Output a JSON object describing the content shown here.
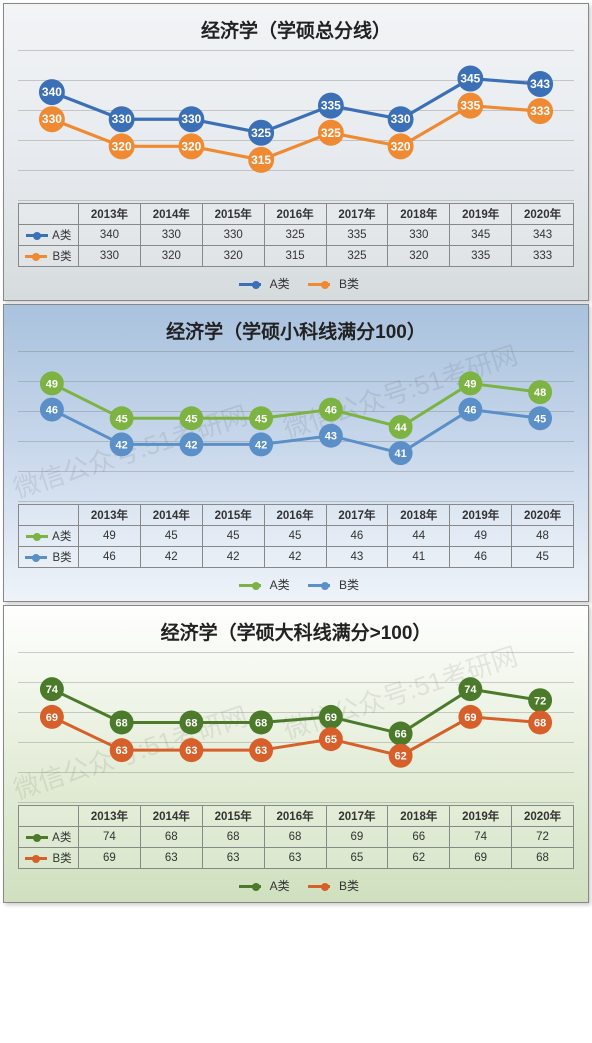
{
  "watermark_text": "微信公众号:51考研网",
  "categories": [
    "2013年",
    "2014年",
    "2015年",
    "2016年",
    "2017年",
    "2018年",
    "2019年",
    "2020年"
  ],
  "series_labels": {
    "a": "A类",
    "b": "B类"
  },
  "charts": [
    {
      "title": "经济学（学硕总分线）",
      "background": "linear-gradient(180deg,#f2f4f6 0%,#e6eaee 55%,#d6dcde 100%)",
      "grid_n": 6,
      "ylim": [
        305,
        350
      ],
      "series_a": {
        "color": "#3b6fb6",
        "values": [
          340,
          330,
          330,
          325,
          335,
          330,
          345,
          343
        ],
        "marker_r": 13,
        "line_w": 3.2,
        "label_color": "#ffffff",
        "label_fs": 12
      },
      "series_b": {
        "color": "#ef8a32",
        "values": [
          330,
          320,
          320,
          315,
          325,
          320,
          335,
          333
        ],
        "marker_r": 13,
        "line_w": 3.2,
        "label_color": "#ffffff",
        "label_fs": 12
      },
      "show_watermark": false
    },
    {
      "title": "经济学（学硕小科线满分100）",
      "background": "linear-gradient(180deg,#a9c2de 0%,#c6d6ea 45%,#eef3f9 100%)",
      "grid_n": 6,
      "ylim": [
        37,
        51
      ],
      "series_a": {
        "color": "#7cb342",
        "values": [
          49,
          45,
          45,
          45,
          46,
          44,
          49,
          48
        ],
        "marker_r": 12,
        "line_w": 3,
        "label_color": "#ffffff",
        "label_fs": 11
      },
      "series_b": {
        "color": "#5b8fc7",
        "values": [
          46,
          42,
          42,
          42,
          43,
          41,
          46,
          45
        ],
        "marker_r": 12,
        "line_w": 3,
        "label_color": "#ffffff",
        "label_fs": 11
      },
      "show_watermark": true
    },
    {
      "title": "经济学（学硕大科线满分>100）",
      "background": "linear-gradient(180deg,#ffffff 0%,#e4edd8 55%,#cfe0bf 100%)",
      "grid_n": 6,
      "ylim": [
        56,
        78
      ],
      "series_a": {
        "color": "#4a7a2a",
        "values": [
          74,
          68,
          68,
          68,
          69,
          66,
          74,
          72
        ],
        "marker_r": 12,
        "line_w": 3,
        "label_color": "#ffffff",
        "label_fs": 11
      },
      "series_b": {
        "color": "#d75f2a",
        "values": [
          69,
          63,
          63,
          63,
          65,
          62,
          69,
          68
        ],
        "marker_r": 12,
        "line_w": 3,
        "label_color": "#ffffff",
        "label_fs": 11
      },
      "show_watermark": true
    }
  ]
}
